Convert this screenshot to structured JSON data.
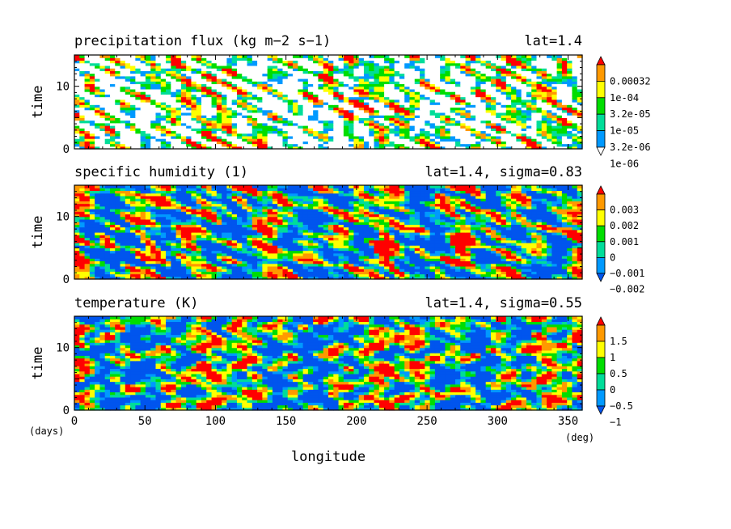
{
  "chart_data": [
    {
      "type": "heatmap",
      "title": "precipitation flux (kg m−2 s−1)",
      "subtitle": "lat=1.4",
      "ylabel": "time",
      "xlim": [
        0,
        360
      ],
      "ylim": [
        0,
        15
      ],
      "yticks": [
        "0",
        "10"
      ],
      "colorbar": {
        "labels": [
          "0.00032",
          "1e-04",
          "3.2e-05",
          "1e-05",
          "3.2e-06",
          "1e-06"
        ],
        "colors": [
          "#ff0000",
          "#ff9900",
          "#ffff00",
          "#00dd00",
          "#00dd99",
          "#0099ff",
          "#ffffff"
        ]
      }
    },
    {
      "type": "heatmap",
      "title": "specific humidity (1)",
      "subtitle": "lat=1.4, sigma=0.83",
      "ylabel": "time",
      "xlim": [
        0,
        360
      ],
      "ylim": [
        0,
        15
      ],
      "yticks": [
        "0",
        "10"
      ],
      "colorbar": {
        "labels": [
          "0.003",
          "0.002",
          "0.001",
          "0",
          "−0.001",
          "−0.002"
        ],
        "colors": [
          "#ff0000",
          "#ff9900",
          "#ffff00",
          "#00dd00",
          "#00dd99",
          "#0099ff",
          "#0055ee"
        ]
      }
    },
    {
      "type": "heatmap",
      "title": "temperature (K)",
      "subtitle": "lat=1.4, sigma=0.55",
      "ylabel": "time",
      "xlabel": "longitude",
      "xlim": [
        0,
        360
      ],
      "ylim": [
        0,
        15
      ],
      "yticks": [
        "0",
        "10"
      ],
      "xticks": [
        "0",
        "50",
        "100",
        "150",
        "200",
        "250",
        "300",
        "350"
      ],
      "x_unit": "(deg)",
      "y_unit": "(days)",
      "colorbar": {
        "labels": [
          "1.5",
          "1",
          "0.5",
          "0",
          "−0.5",
          "−1"
        ],
        "colors": [
          "#ff0000",
          "#ff9900",
          "#ffff00",
          "#00dd00",
          "#00dd99",
          "#0099ff",
          "#0055ee"
        ]
      }
    }
  ]
}
